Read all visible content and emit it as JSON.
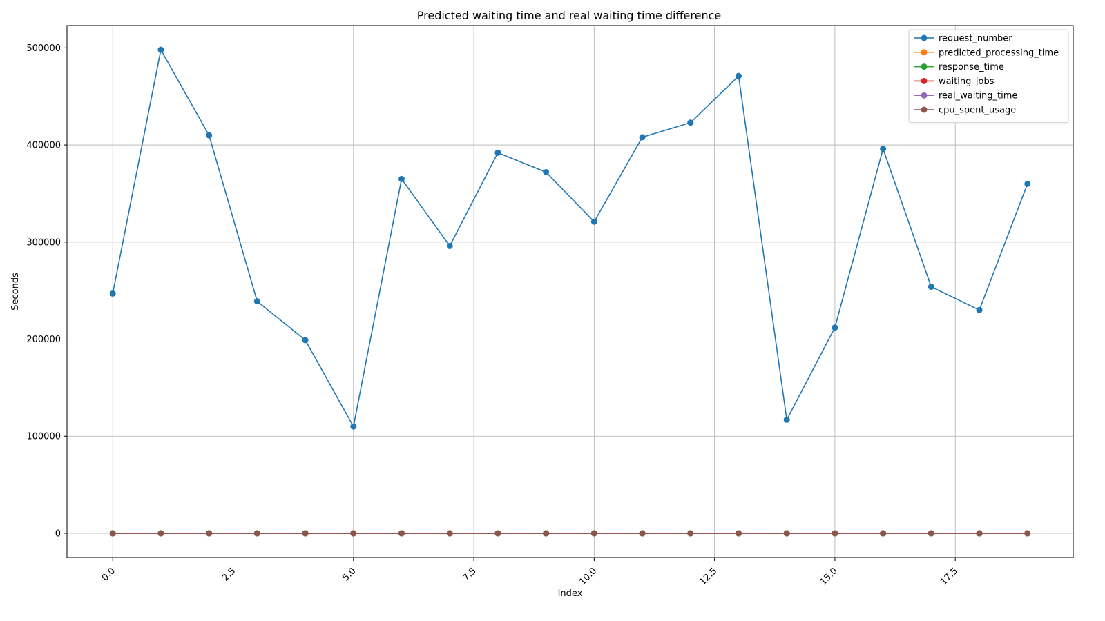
{
  "chart_data": {
    "type": "line",
    "title": "Predicted waiting time and real waiting time difference",
    "xlabel": "Index",
    "ylabel": "Seconds",
    "xlim": [
      -0.95,
      19.95
    ],
    "ylim": [
      -24900,
      523000
    ],
    "xticks": [
      "0.0",
      "2.5",
      "5.0",
      "7.5",
      "10.0",
      "12.5",
      "15.0",
      "17.5"
    ],
    "yticks": [
      "0",
      "100000",
      "200000",
      "300000",
      "400000",
      "500000"
    ],
    "grid": true,
    "legend_position": "top-right",
    "x": [
      0,
      1,
      2,
      3,
      4,
      5,
      6,
      7,
      8,
      9,
      10,
      11,
      12,
      13,
      14,
      15,
      16,
      17,
      18,
      19
    ],
    "series": [
      {
        "name": "request_number",
        "color": "#1f77b4",
        "values": [
          247000,
          498000,
          410000,
          239000,
          199000,
          110000,
          365000,
          296000,
          392000,
          372000,
          321000,
          408000,
          423000,
          471000,
          117000,
          212000,
          396000,
          254000,
          230000,
          360000
        ]
      },
      {
        "name": "predicted_processing_time",
        "color": "#ff7f0e",
        "values": [
          0,
          0,
          0,
          0,
          0,
          0,
          0,
          0,
          0,
          0,
          0,
          0,
          0,
          0,
          0,
          0,
          0,
          0,
          0,
          0
        ]
      },
      {
        "name": "response_time",
        "color": "#2ca02c",
        "values": [
          0,
          0,
          0,
          0,
          0,
          0,
          0,
          0,
          0,
          0,
          0,
          0,
          0,
          0,
          0,
          0,
          0,
          0,
          0,
          0
        ]
      },
      {
        "name": "waiting_jobs",
        "color": "#d62728",
        "values": [
          0,
          0,
          0,
          0,
          0,
          0,
          0,
          0,
          0,
          0,
          0,
          0,
          0,
          0,
          0,
          0,
          0,
          0,
          0,
          0
        ]
      },
      {
        "name": "real_waiting_time",
        "color": "#9467bd",
        "values": [
          0,
          0,
          0,
          0,
          0,
          0,
          0,
          0,
          0,
          0,
          0,
          0,
          0,
          0,
          0,
          0,
          0,
          0,
          0,
          0
        ]
      },
      {
        "name": "cpu_spent_usage",
        "color": "#8c564b",
        "values": [
          0,
          0,
          0,
          0,
          0,
          0,
          0,
          0,
          0,
          0,
          0,
          0,
          0,
          0,
          0,
          0,
          0,
          0,
          0,
          0
        ]
      }
    ]
  }
}
